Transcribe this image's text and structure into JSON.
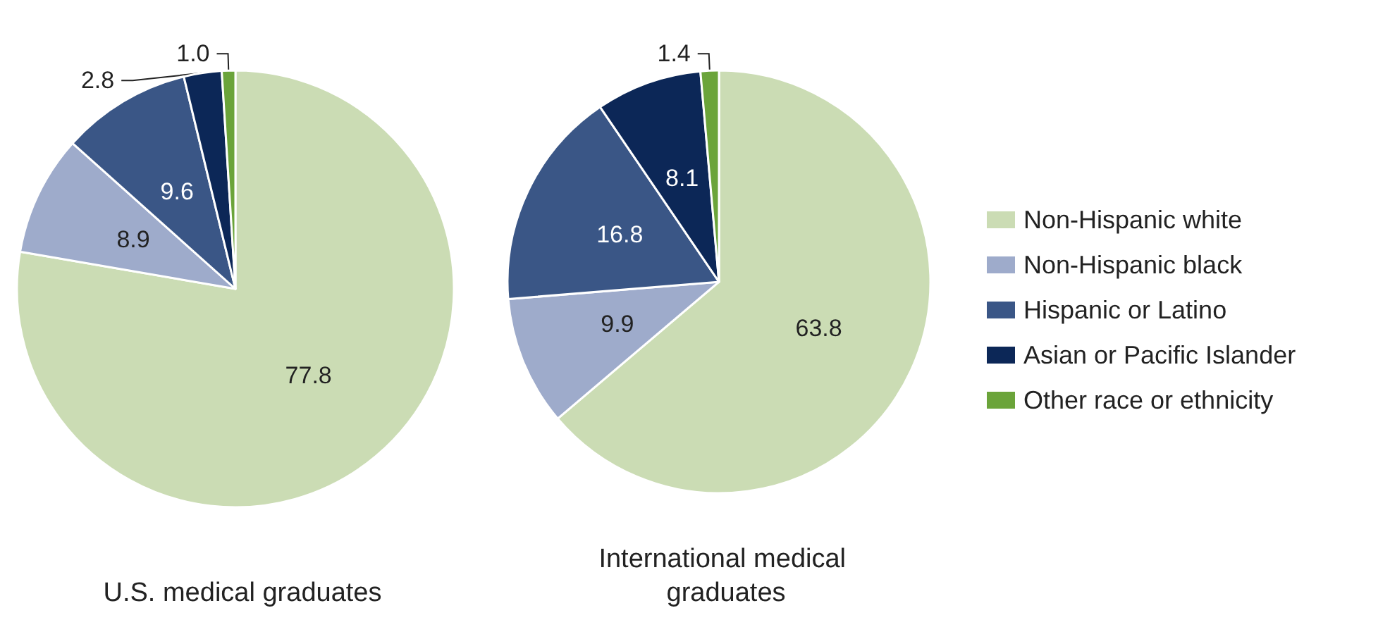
{
  "chart_data": {
    "type": "pie",
    "categories": [
      "Non-Hispanic white",
      "Non-Hispanic black",
      "Hispanic or Latino",
      "Asian or Pacific Islander",
      "Other race or ethnicity"
    ],
    "colors": [
      "#cbdcb4",
      "#9eabcb",
      "#3a5686",
      "#0c2757",
      "#6ba43a"
    ],
    "legend": "right",
    "series": [
      {
        "name": "U.S. medical graduates",
        "values": [
          77.8,
          8.9,
          9.6,
          2.8,
          1.0
        ],
        "value_labels": [
          "77.8",
          "8.9",
          "9.6",
          "2.8",
          "1.0"
        ]
      },
      {
        "name": "International medical graduates",
        "values": [
          63.8,
          9.9,
          16.8,
          8.1,
          1.4
        ],
        "value_labels": [
          "63.8",
          "9.9",
          "16.8",
          "8.1",
          "1.4"
        ]
      }
    ]
  }
}
